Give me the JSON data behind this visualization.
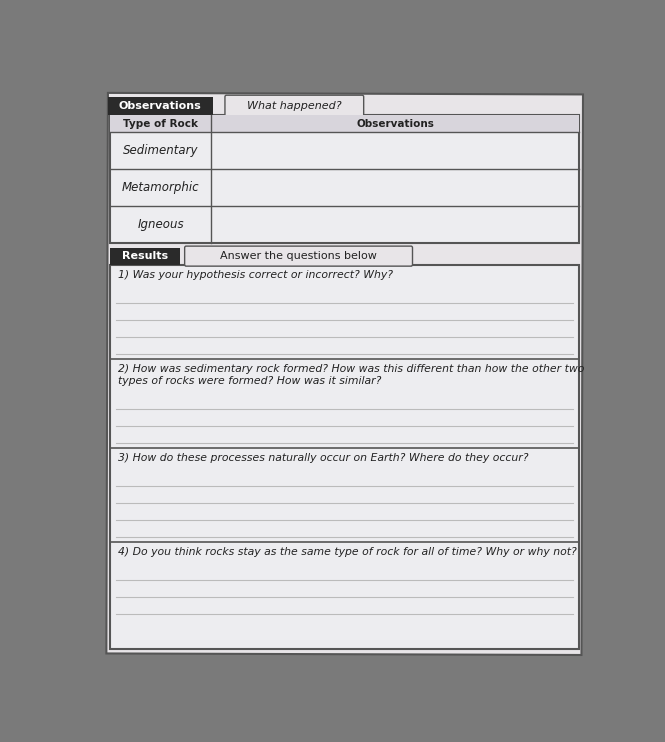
{
  "bg_color": "#7a7a7a",
  "paper_color": "#e8e5e8",
  "paper_light": "#ededf0",
  "header_bg": "#2a2a2a",
  "header_text_color": "#ffffff",
  "border_color": "#555555",
  "line_color": "#aaaaaa",
  "thin_line_color": "#bbbbbb",
  "text_color": "#222222",
  "obs_header": "Observations",
  "what_happened": "What happened?",
  "results_header": "Results",
  "answer_text": "Answer the questions below",
  "col1_header": "Type of Rock",
  "col2_header": "Observations",
  "rock_types": [
    "Sedimentary",
    "Metamorphic",
    "Igneous"
  ],
  "q1": "1) Was your hypothesis correct or incorrect? Why?",
  "q2_line1": "2) How was sedimentary rock formed? How was this different than how the other two",
  "q2_line2": "types of rocks were formed? How was it similar?",
  "q3": "3) How do these processes naturally occur on Earth? Where do they occur?",
  "q4": "4) Do you think rocks stay as the same type of rock for all of time? Why or why not?",
  "q1_answer_lines": 4,
  "q2_answer_lines": 3,
  "q3_answer_lines": 4,
  "q4_answer_lines": 3
}
